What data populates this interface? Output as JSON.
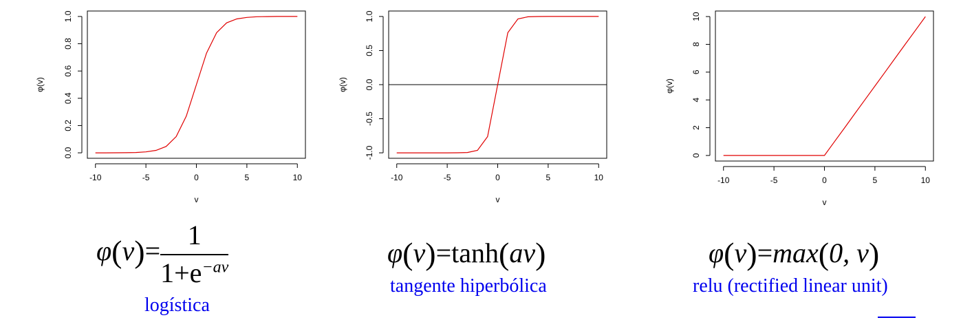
{
  "chart_data": [
    {
      "type": "line",
      "xlabel": "v",
      "ylabel": "φ(v)",
      "xlim": [
        -10,
        10
      ],
      "ylim": [
        0,
        1
      ],
      "xticks": [
        -10,
        -5,
        0,
        5,
        10
      ],
      "yticks": [
        0.0,
        0.2,
        0.4,
        0.6,
        0.8,
        1.0
      ],
      "ytick_labels": [
        "0.0",
        "0.2",
        "0.4",
        "0.6",
        "0.8",
        "1.0"
      ],
      "hline": null,
      "series": [
        {
          "color": "#e00000",
          "x": [
            -10,
            -9,
            -8,
            -7,
            -6,
            -5,
            -4,
            -3,
            -2,
            -1,
            0,
            1,
            2,
            3,
            4,
            5,
            6,
            7,
            8,
            9,
            10
          ],
          "y": [
            5e-05,
            0.0001,
            0.0003,
            0.0009,
            0.0025,
            0.0067,
            0.018,
            0.047,
            0.119,
            0.269,
            0.5,
            0.731,
            0.881,
            0.953,
            0.982,
            0.993,
            0.998,
            0.999,
            1.0,
            1.0,
            1.0
          ]
        }
      ]
    },
    {
      "type": "line",
      "xlabel": "v",
      "ylabel": "φ(v)",
      "xlim": [
        -10,
        10
      ],
      "ylim": [
        -1,
        1
      ],
      "xticks": [
        -10,
        -5,
        0,
        5,
        10
      ],
      "yticks": [
        -1.0,
        -0.5,
        0.0,
        0.5,
        1.0
      ],
      "ytick_labels": [
        "-1.0",
        "-0.5",
        "0.0",
        "0.5",
        "1.0"
      ],
      "hline": 0,
      "series": [
        {
          "color": "#e00000",
          "x": [
            -10,
            -9,
            -8,
            -7,
            -6,
            -5,
            -4,
            -3,
            -2,
            -1,
            0,
            1,
            2,
            3,
            4,
            5,
            6,
            7,
            8,
            9,
            10
          ],
          "y": [
            -1,
            -1,
            -1,
            -1,
            -1,
            -1,
            -0.999,
            -0.995,
            -0.964,
            -0.762,
            0,
            0.762,
            0.964,
            0.995,
            0.999,
            1,
            1,
            1,
            1,
            1,
            1
          ]
        }
      ]
    },
    {
      "type": "line",
      "xlabel": "v",
      "ylabel": "φ(v)",
      "xlim": [
        -10,
        10
      ],
      "ylim": [
        0,
        10
      ],
      "xticks": [
        -10,
        -5,
        0,
        5,
        10
      ],
      "yticks": [
        0,
        2,
        4,
        6,
        8,
        10
      ],
      "ytick_labels": [
        "0",
        "2",
        "4",
        "6",
        "8",
        "10"
      ],
      "hline": null,
      "series": [
        {
          "color": "#e00000",
          "x": [
            -10,
            -9,
            -8,
            -7,
            -6,
            -5,
            -4,
            -3,
            -2,
            -1,
            0,
            1,
            2,
            3,
            4,
            5,
            6,
            7,
            8,
            9,
            10
          ],
          "y": [
            0,
            0,
            0,
            0,
            0,
            0,
            0,
            0,
            0,
            0,
            0,
            1,
            2,
            3,
            4,
            5,
            6,
            7,
            8,
            9,
            10
          ]
        }
      ]
    }
  ],
  "formulas": {
    "logistic": {
      "lhs_phi": "φ",
      "lhs_open": "(",
      "lhs_var": "v",
      "lhs_close": ")",
      "equals": "=",
      "numerator": "1",
      "denominator_base": "1+e",
      "denominator_exp": "−av"
    },
    "tanh": {
      "lhs_phi": "φ",
      "lhs_open": "(",
      "lhs_var": "v",
      "lhs_close": ")",
      "equals": "=",
      "func": "tanh",
      "arg_open": "(",
      "arg": "av",
      "arg_close": ")"
    },
    "relu": {
      "lhs_phi": "φ",
      "lhs_open": "(",
      "lhs_var": "v",
      "lhs_close": ")",
      "equals": "=",
      "func": "max",
      "arg_open": "(",
      "arg": "0, v",
      "arg_close": ")"
    }
  },
  "captions": {
    "logistic": "logística",
    "tanh": "tangente hiperbólica",
    "relu": "relu (rectified linear unit)"
  },
  "colors": {
    "curve": "#e00000",
    "caption": "#0000ee"
  }
}
